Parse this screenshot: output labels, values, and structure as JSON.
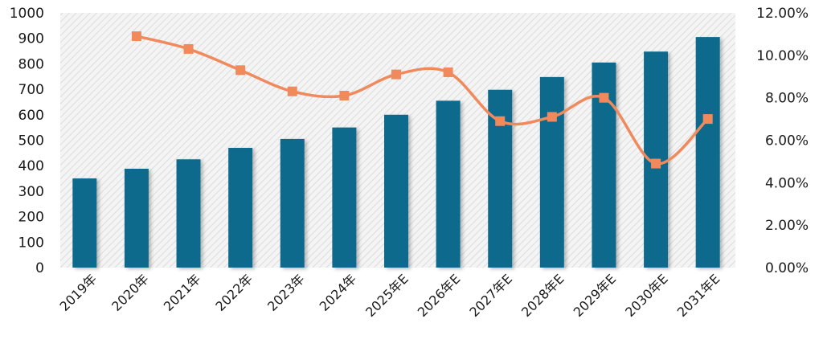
{
  "chart_data": {
    "type": "bar",
    "categories": [
      "2019年",
      "2020年",
      "2021年",
      "2022年",
      "2023年",
      "2024年",
      "2025年E",
      "2026年E",
      "2027年E",
      "2028年E",
      "2029年E",
      "2030年E",
      "2031年E"
    ],
    "series": [
      {
        "type": "bar",
        "axis": "left",
        "color": "#0f6b8c",
        "values": [
          350,
          388,
          425,
          470,
          505,
          550,
          600,
          655,
          698,
          748,
          805,
          848,
          905
        ]
      },
      {
        "type": "line",
        "axis": "right",
        "color": "#f08a5d",
        "values": [
          null,
          10.9,
          10.3,
          9.3,
          8.3,
          8.1,
          9.1,
          9.2,
          6.9,
          7.1,
          8.0,
          4.9,
          7.0
        ]
      }
    ],
    "y_left": {
      "min": 0,
      "max": 1000,
      "ticks": [
        "0",
        "100",
        "200",
        "300",
        "400",
        "500",
        "600",
        "700",
        "800",
        "900",
        "1000"
      ]
    },
    "y_right": {
      "min": 0,
      "max": 12,
      "ticks": [
        "0.00%",
        "2.00%",
        "4.00%",
        "6.00%",
        "8.00%",
        "10.00%",
        "12.00%"
      ]
    },
    "grid": false,
    "plot_background": "hatched light gray"
  }
}
